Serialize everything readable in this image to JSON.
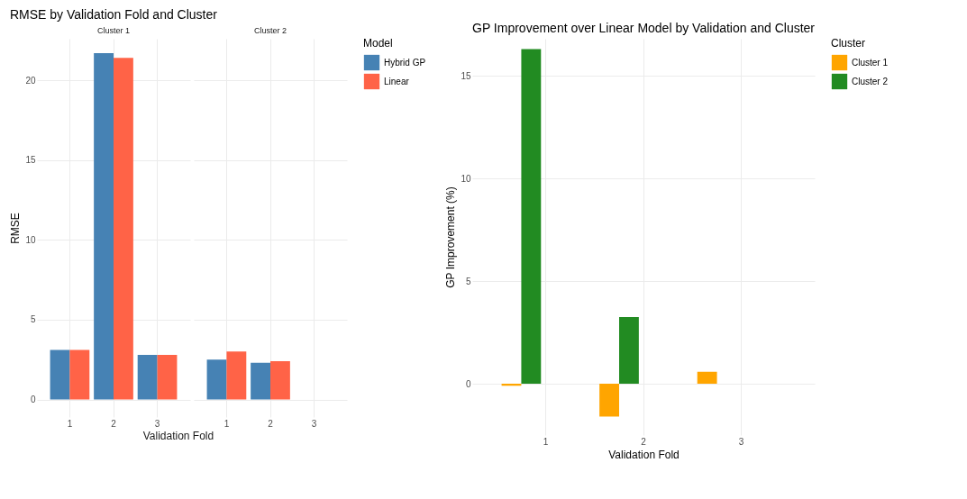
{
  "chart_data": [
    {
      "type": "bar",
      "title": "RMSE by Validation Fold and Cluster",
      "subtitle": "Cluster 1",
      "legend_title": "Model",
      "legend": "right",
      "xlabel": "Validation Fold",
      "ylabel": "RMSE",
      "categories": [
        "1",
        "2",
        "3"
      ],
      "ylim": [
        -1.1,
        22.6
      ],
      "yticks": [
        0,
        5,
        10,
        15,
        20
      ],
      "grid": true,
      "series": [
        {
          "name": "Hybrid GP",
          "color": "#4682b4",
          "values": [
            3.1,
            21.7,
            2.8
          ]
        },
        {
          "name": "Linear",
          "color": "#ff6347",
          "values": [
            3.1,
            21.4,
            2.8
          ]
        }
      ]
    },
    {
      "type": "bar",
      "subtitle": "Cluster 2",
      "tick_labels": "x",
      "categories": [
        "1",
        "2",
        "3"
      ],
      "ylim": [
        -1.1,
        22.6
      ],
      "yticks": [
        0,
        5,
        10,
        15,
        20
      ],
      "grid": true,
      "series": [
        {
          "name": "Hybrid GP",
          "color": "#4682b4",
          "values": [
            2.5,
            2.3,
            null
          ]
        },
        {
          "name": "Linear",
          "color": "#ff6347",
          "values": [
            3.0,
            2.4,
            null
          ]
        }
      ]
    },
    {
      "type": "bar",
      "title": "GP Improvement over Linear Model by Validation and Cluster",
      "xlabel": "Validation Fold",
      "ylabel": "GP Improvement (%)",
      "legend_title": "Cluster",
      "legend": "right",
      "categories": [
        "1",
        "2",
        "3"
      ],
      "ylim": [
        -2.5,
        16.8
      ],
      "yticks": [
        0,
        5,
        10,
        15
      ],
      "grid": true,
      "series": [
        {
          "name": "Cluster 1",
          "color": "#ffa500",
          "values": [
            -0.1,
            -1.6,
            0.58
          ]
        },
        {
          "name": "Cluster 2",
          "color": "#228b22",
          "values": [
            16.3,
            3.25,
            null
          ]
        }
      ]
    }
  ]
}
